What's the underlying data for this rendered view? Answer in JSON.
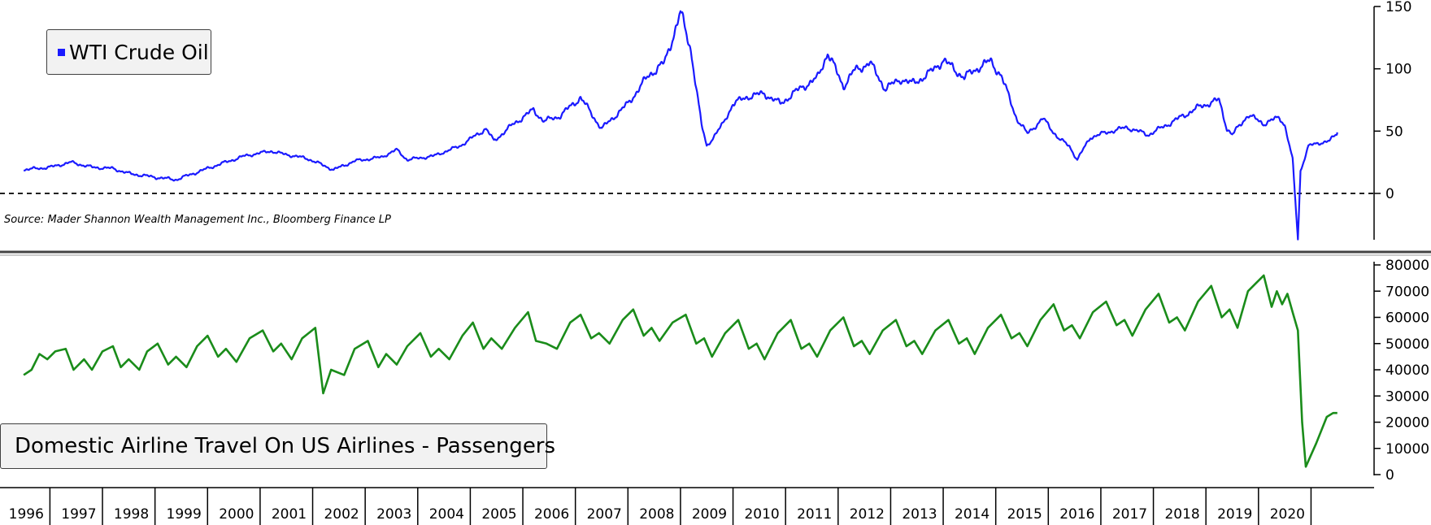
{
  "chart_data": [
    {
      "type": "line",
      "series": [
        {
          "name": "WTI Crude Oil",
          "color": "#1a1aff",
          "points": [
            [
              1996.0,
              19
            ],
            [
              1996.5,
              21
            ],
            [
              1996.9,
              25
            ],
            [
              1997.3,
              21
            ],
            [
              1997.7,
              20
            ],
            [
              1998.0,
              16
            ],
            [
              1998.5,
              13
            ],
            [
              1998.9,
              11
            ],
            [
              1999.3,
              17
            ],
            [
              1999.7,
              23
            ],
            [
              2000.2,
              30
            ],
            [
              2000.7,
              34
            ],
            [
              2000.9,
              32
            ],
            [
              2001.4,
              28
            ],
            [
              2001.9,
              19
            ],
            [
              2002.3,
              26
            ],
            [
              2002.8,
              29
            ],
            [
              2003.1,
              35
            ],
            [
              2003.3,
              27
            ],
            [
              2003.8,
              30
            ],
            [
              2004.3,
              38
            ],
            [
              2004.8,
              52
            ],
            [
              2004.95,
              42
            ],
            [
              2005.3,
              55
            ],
            [
              2005.7,
              67
            ],
            [
              2005.9,
              58
            ],
            [
              2006.2,
              62
            ],
            [
              2006.6,
              77
            ],
            [
              2006.9,
              58
            ],
            [
              2007.0,
              52
            ],
            [
              2007.5,
              72
            ],
            [
              2007.9,
              95
            ],
            [
              2008.2,
              105
            ],
            [
              2008.5,
              145
            ],
            [
              2008.7,
              115
            ],
            [
              2008.9,
              55
            ],
            [
              2009.0,
              38
            ],
            [
              2009.3,
              55
            ],
            [
              2009.5,
              72
            ],
            [
              2009.8,
              78
            ],
            [
              2010.1,
              80
            ],
            [
              2010.4,
              72
            ],
            [
              2010.8,
              85
            ],
            [
              2011.1,
              92
            ],
            [
              2011.3,
              113
            ],
            [
              2011.6,
              86
            ],
            [
              2011.8,
              98
            ],
            [
              2012.1,
              105
            ],
            [
              2012.4,
              84
            ],
            [
              2012.7,
              92
            ],
            [
              2012.9,
              88
            ],
            [
              2013.2,
              95
            ],
            [
              2013.5,
              107
            ],
            [
              2013.9,
              93
            ],
            [
              2014.2,
              102
            ],
            [
              2014.4,
              106
            ],
            [
              2014.6,
              95
            ],
            [
              2014.9,
              60
            ],
            [
              2015.1,
              48
            ],
            [
              2015.4,
              60
            ],
            [
              2015.7,
              44
            ],
            [
              2015.9,
              38
            ],
            [
              2016.05,
              27
            ],
            [
              2016.3,
              45
            ],
            [
              2016.7,
              50
            ],
            [
              2017.0,
              53
            ],
            [
              2017.4,
              47
            ],
            [
              2017.8,
              56
            ],
            [
              2018.1,
              63
            ],
            [
              2018.4,
              70
            ],
            [
              2018.75,
              75
            ],
            [
              2018.9,
              52
            ],
            [
              2019.0,
              47
            ],
            [
              2019.3,
              63
            ],
            [
              2019.6,
              56
            ],
            [
              2019.9,
              61
            ],
            [
              2020.0,
              55
            ],
            [
              2020.15,
              27
            ],
            [
              2020.25,
              -37
            ],
            [
              2020.3,
              18
            ],
            [
              2020.45,
              38
            ],
            [
              2020.7,
              41
            ],
            [
              2020.85,
              42
            ],
            [
              2020.95,
              46
            ],
            [
              2021.0,
              49
            ]
          ]
        }
      ],
      "ylim": [
        -40,
        150
      ],
      "yticks": [
        0,
        50,
        100,
        150
      ],
      "reference_line": {
        "y": 0,
        "style": "dashed"
      },
      "annotation": "Source: Mader Shannon Wealth Management Inc., Bloomberg Finance LP",
      "legend": "top-left"
    },
    {
      "type": "line",
      "series": [
        {
          "name": "Domestic Airline Travel On US Airlines - Passengers",
          "color": "#1a8c1a",
          "points": [
            [
              1996.0,
              38000
            ],
            [
              1996.15,
              40000
            ],
            [
              1996.3,
              46000
            ],
            [
              1996.45,
              44000
            ],
            [
              1996.6,
              47000
            ],
            [
              1996.8,
              48000
            ],
            [
              1996.95,
              40000
            ],
            [
              1997.15,
              44000
            ],
            [
              1997.3,
              40000
            ],
            [
              1997.5,
              47000
            ],
            [
              1997.7,
              49000
            ],
            [
              1997.85,
              41000
            ],
            [
              1998.0,
              44000
            ],
            [
              1998.2,
              40000
            ],
            [
              1998.35,
              47000
            ],
            [
              1998.55,
              50000
            ],
            [
              1998.75,
              42000
            ],
            [
              1998.9,
              45000
            ],
            [
              1999.1,
              41000
            ],
            [
              1999.3,
              49000
            ],
            [
              1999.5,
              53000
            ],
            [
              1999.7,
              45000
            ],
            [
              1999.85,
              48000
            ],
            [
              2000.05,
              43000
            ],
            [
              2000.3,
              52000
            ],
            [
              2000.55,
              55000
            ],
            [
              2000.75,
              47000
            ],
            [
              2000.9,
              50000
            ],
            [
              2001.1,
              44000
            ],
            [
              2001.3,
              52000
            ],
            [
              2001.55,
              56000
            ],
            [
              2001.7,
              31000
            ],
            [
              2001.85,
              40000
            ],
            [
              2002.1,
              38000
            ],
            [
              2002.3,
              48000
            ],
            [
              2002.55,
              51000
            ],
            [
              2002.75,
              41000
            ],
            [
              2002.9,
              46000
            ],
            [
              2003.1,
              42000
            ],
            [
              2003.3,
              49000
            ],
            [
              2003.55,
              54000
            ],
            [
              2003.75,
              45000
            ],
            [
              2003.9,
              48000
            ],
            [
              2004.1,
              44000
            ],
            [
              2004.35,
              53000
            ],
            [
              2004.55,
              58000
            ],
            [
              2004.75,
              48000
            ],
            [
              2004.9,
              52000
            ],
            [
              2005.1,
              48000
            ],
            [
              2005.35,
              56000
            ],
            [
              2005.6,
              62000
            ],
            [
              2005.75,
              51000
            ],
            [
              2005.95,
              50000
            ],
            [
              2006.15,
              48000
            ],
            [
              2006.4,
              58000
            ],
            [
              2006.6,
              61000
            ],
            [
              2006.8,
              52000
            ],
            [
              2006.95,
              54000
            ],
            [
              2007.15,
              50000
            ],
            [
              2007.4,
              59000
            ],
            [
              2007.6,
              63000
            ],
            [
              2007.8,
              53000
            ],
            [
              2007.95,
              56000
            ],
            [
              2008.1,
              51000
            ],
            [
              2008.35,
              58000
            ],
            [
              2008.6,
              61000
            ],
            [
              2008.8,
              50000
            ],
            [
              2008.95,
              52000
            ],
            [
              2009.1,
              45000
            ],
            [
              2009.35,
              54000
            ],
            [
              2009.6,
              59000
            ],
            [
              2009.8,
              48000
            ],
            [
              2009.95,
              50000
            ],
            [
              2010.1,
              44000
            ],
            [
              2010.35,
              54000
            ],
            [
              2010.6,
              59000
            ],
            [
              2010.8,
              48000
            ],
            [
              2010.95,
              50000
            ],
            [
              2011.1,
              45000
            ],
            [
              2011.35,
              55000
            ],
            [
              2011.6,
              60000
            ],
            [
              2011.8,
              49000
            ],
            [
              2011.95,
              51000
            ],
            [
              2012.1,
              46000
            ],
            [
              2012.35,
              55000
            ],
            [
              2012.6,
              59000
            ],
            [
              2012.8,
              49000
            ],
            [
              2012.95,
              51000
            ],
            [
              2013.1,
              46000
            ],
            [
              2013.35,
              55000
            ],
            [
              2013.6,
              59000
            ],
            [
              2013.8,
              50000
            ],
            [
              2013.95,
              52000
            ],
            [
              2014.1,
              46000
            ],
            [
              2014.35,
              56000
            ],
            [
              2014.6,
              61000
            ],
            [
              2014.8,
              52000
            ],
            [
              2014.95,
              54000
            ],
            [
              2015.1,
              49000
            ],
            [
              2015.35,
              59000
            ],
            [
              2015.6,
              65000
            ],
            [
              2015.8,
              55000
            ],
            [
              2015.95,
              57000
            ],
            [
              2016.1,
              52000
            ],
            [
              2016.35,
              62000
            ],
            [
              2016.6,
              66000
            ],
            [
              2016.8,
              57000
            ],
            [
              2016.95,
              59000
            ],
            [
              2017.1,
              53000
            ],
            [
              2017.35,
              63000
            ],
            [
              2017.6,
              69000
            ],
            [
              2017.8,
              58000
            ],
            [
              2017.95,
              60000
            ],
            [
              2018.1,
              55000
            ],
            [
              2018.35,
              66000
            ],
            [
              2018.6,
              72000
            ],
            [
              2018.8,
              60000
            ],
            [
              2018.95,
              63000
            ],
            [
              2019.1,
              56000
            ],
            [
              2019.3,
              70000
            ],
            [
              2019.45,
              73000
            ],
            [
              2019.6,
              76000
            ],
            [
              2019.75,
              64000
            ],
            [
              2019.85,
              70000
            ],
            [
              2019.95,
              65000
            ],
            [
              2020.05,
              69000
            ],
            [
              2020.15,
              62000
            ],
            [
              2020.25,
              55000
            ],
            [
              2020.33,
              20000
            ],
            [
              2020.4,
              3000
            ],
            [
              2020.6,
              12000
            ],
            [
              2020.8,
              22000
            ],
            [
              2020.92,
              23500
            ],
            [
              2021.0,
              23500
            ]
          ]
        }
      ],
      "ylim": [
        -3000,
        82000
      ],
      "yticks": [
        0,
        10000,
        20000,
        30000,
        40000,
        50000,
        60000,
        70000,
        80000
      ],
      "x_tick_labels": [
        "1996",
        "1997",
        "1998",
        "1999",
        "2000",
        "2001",
        "2002",
        "2003",
        "2004",
        "2005",
        "2006",
        "2007",
        "2008",
        "2009",
        "2010",
        "2011",
        "2012",
        "2013",
        "2014",
        "2015",
        "2016",
        "2017",
        "2018",
        "2019",
        "2020"
      ],
      "legend": "bottom-left"
    }
  ]
}
